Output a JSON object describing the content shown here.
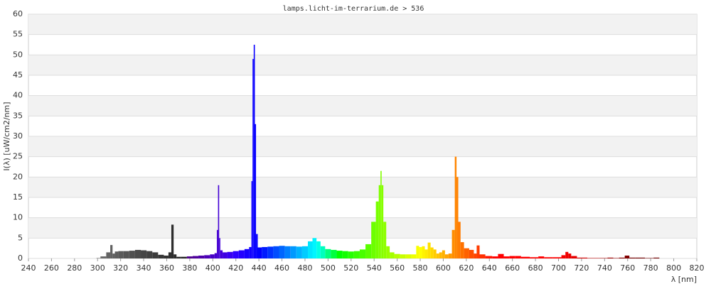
{
  "chart_data": {
    "type": "spectrum",
    "title": "lamps.licht-im-terrarium.de > 536",
    "y_label": "I(λ) [uW/cm2/nm]",
    "x_label": "λ [nm]",
    "x": [
      300,
      305,
      310,
      312,
      314,
      316,
      320,
      325,
      330,
      335,
      340,
      345,
      350,
      355,
      360,
      363,
      365,
      367,
      370,
      375,
      380,
      385,
      390,
      395,
      400,
      403,
      404,
      405,
      406,
      407,
      410,
      415,
      420,
      425,
      430,
      433,
      434,
      435,
      436,
      437,
      438,
      440,
      445,
      450,
      455,
      460,
      465,
      470,
      475,
      480,
      485,
      488,
      492,
      495,
      500,
      505,
      510,
      515,
      520,
      525,
      530,
      535,
      540,
      543,
      545,
      546,
      547,
      549,
      552,
      555,
      560,
      565,
      570,
      575,
      578,
      580,
      583,
      585,
      588,
      590,
      593,
      595,
      598,
      600,
      603,
      606,
      609,
      611,
      612,
      614,
      616,
      620,
      625,
      628,
      630,
      633,
      640,
      645,
      650,
      655,
      660,
      665,
      670,
      680,
      685,
      690,
      700,
      705,
      707,
      710,
      712,
      720,
      730,
      740,
      745,
      750,
      755,
      760,
      763,
      770,
      780,
      785,
      790
    ],
    "values": [
      0.1,
      0.5,
      1.5,
      3.3,
      1.2,
      1.7,
      1.8,
      1.8,
      1.9,
      2.1,
      2.0,
      1.8,
      1.5,
      0.9,
      0.7,
      1.5,
      8.3,
      1.0,
      0.4,
      0.4,
      0.5,
      0.6,
      0.7,
      0.8,
      1.0,
      1.3,
      7,
      18,
      5,
      2,
      1.5,
      1.6,
      1.8,
      2.0,
      2.3,
      2.8,
      19,
      49,
      52.5,
      33,
      6,
      2.7,
      2.8,
      2.9,
      3.0,
      3.1,
      3.0,
      3.0,
      2.9,
      3.0,
      4.2,
      5.0,
      4.2,
      3.0,
      2.3,
      2.1,
      1.9,
      1.8,
      1.7,
      1.8,
      2.2,
      3.5,
      9,
      14,
      18,
      21.5,
      18,
      9,
      3,
      1.5,
      1.1,
      1.0,
      1.0,
      1.0,
      3.1,
      2.8,
      3.0,
      2.2,
      3.9,
      2.7,
      2.2,
      1.2,
      1.5,
      2.0,
      1.0,
      1.2,
      7,
      25,
      20,
      9,
      4,
      2.5,
      2.1,
      1.2,
      3.2,
      1.0,
      0.6,
      0.5,
      1.1,
      0.5,
      0.6,
      0.6,
      0.4,
      0.3,
      0.5,
      0.3,
      0.3,
      0.8,
      1.6,
      1.2,
      0.6,
      0.2,
      0.1,
      0.1,
      0.2,
      0.1,
      0.2,
      0.7,
      0.2,
      0.2,
      0.1,
      0.2,
      0
    ],
    "xlim": [
      240,
      820
    ],
    "xticks": [
      240,
      260,
      280,
      300,
      320,
      340,
      360,
      380,
      400,
      420,
      440,
      460,
      480,
      500,
      520,
      540,
      560,
      580,
      600,
      620,
      640,
      660,
      680,
      700,
      720,
      740,
      760,
      780,
      800,
      820
    ],
    "ylim": [
      0,
      60
    ],
    "yticks": [
      0,
      5,
      10,
      15,
      20,
      25,
      30,
      35,
      40,
      45,
      50,
      55,
      60
    ],
    "grid": true
  }
}
